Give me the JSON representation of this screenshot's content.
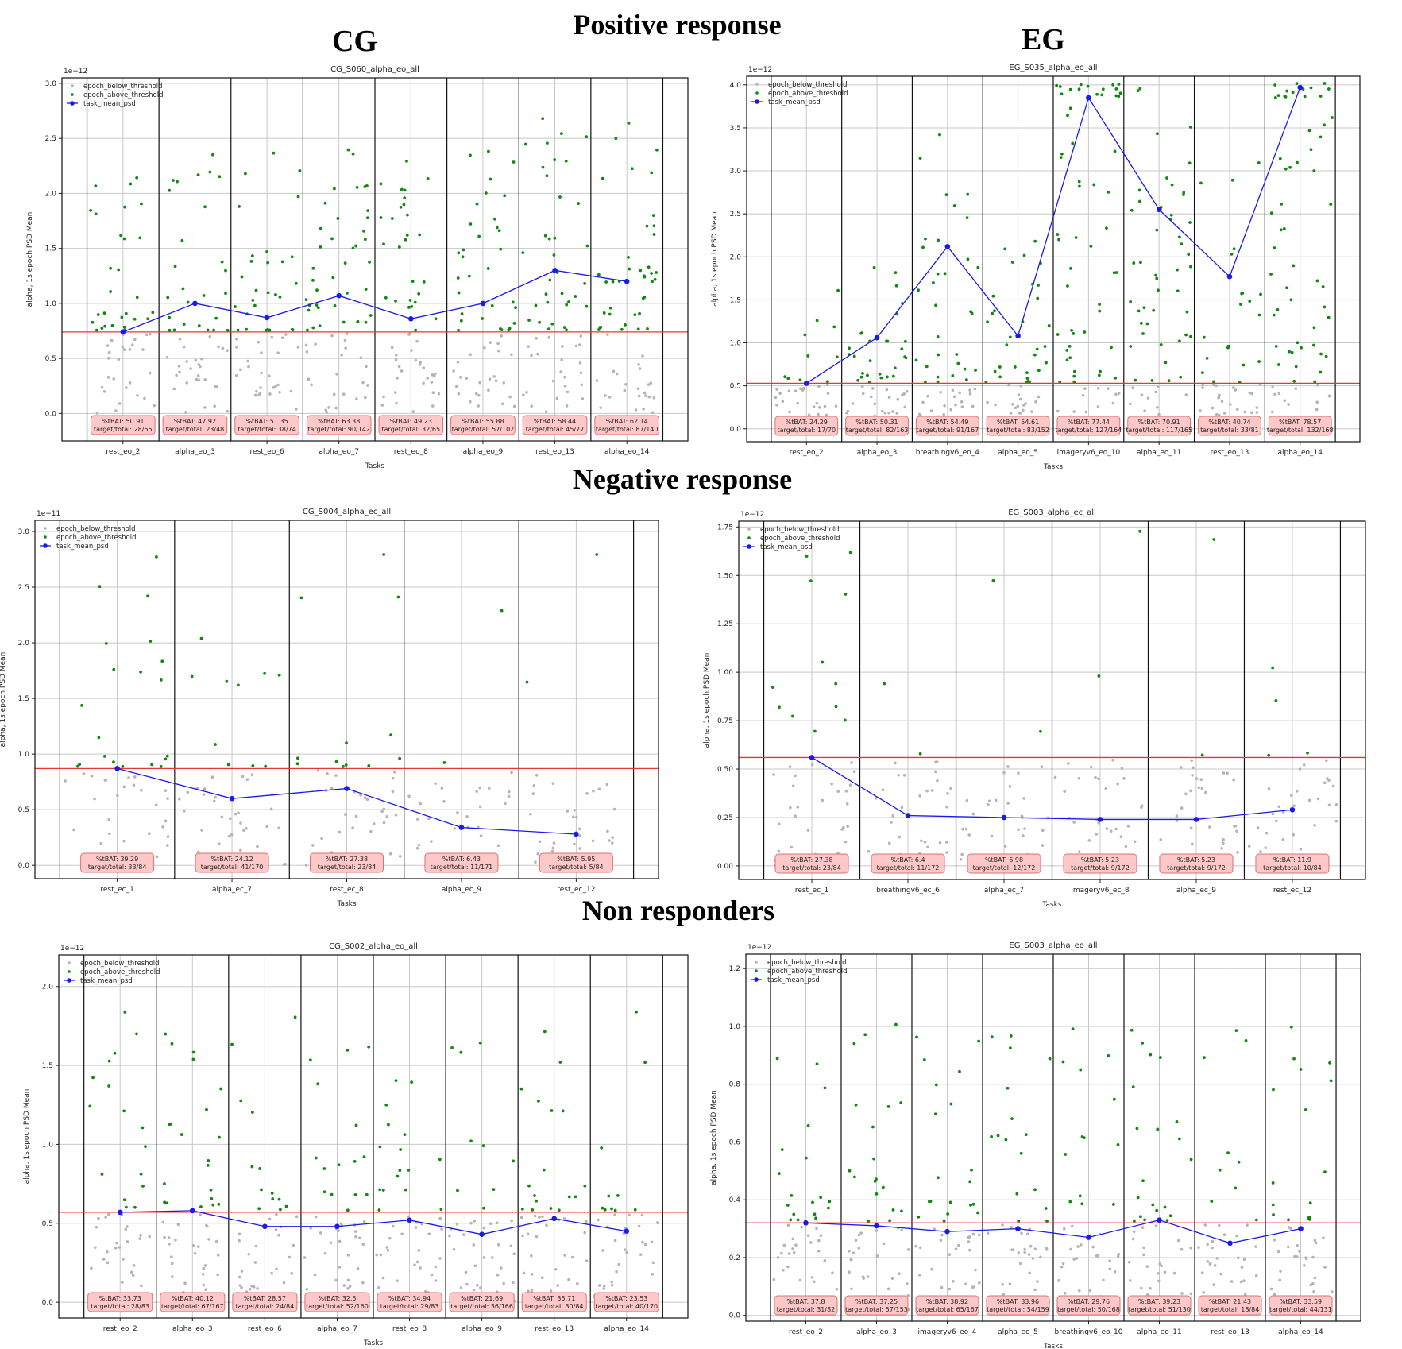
{
  "headings": {
    "positive": "Positive response",
    "negative": "Negative response",
    "non": "Non responders",
    "cg": "CG",
    "eg": "EG"
  },
  "legend_labels": [
    "epoch_below_threshold",
    "epoch_above_threshold",
    "task_mean_psd"
  ],
  "colors": {
    "below": "#b4b4b4",
    "above": "#118811",
    "mean": "#1a1aee",
    "threshold": "#ee3333",
    "box_fill": "#ffc8c8",
    "box_edge": "#e07070"
  },
  "chart_data": [
    {
      "type": "scatter",
      "title": "CG_S060_alpha_eo_all",
      "xlabel": "Tasks",
      "ylabel": "alpha, 1s epoch PSD Mean",
      "exponent": "1e−12",
      "ylim": [
        -0.25,
        3.05
      ],
      "yticks": [
        "0.0",
        "0.5",
        "1.0",
        "1.5",
        "2.0",
        "2.5",
        "3.0"
      ],
      "ytick_values": [
        0,
        0.5,
        1.0,
        1.5,
        2.0,
        2.5,
        3.0
      ],
      "threshold": 0.74,
      "legend": "upper-left",
      "grid": true,
      "tasks": [
        {
          "name": "rest_eo_2",
          "mean": 0.74,
          "pct": "%tBAT: 50.91",
          "ratio": "target/total: 28/55"
        },
        {
          "name": "alpha_eo_3",
          "mean": 1.0,
          "pct": "%tBAT: 47.92",
          "ratio": "target/total: 23/48"
        },
        {
          "name": "rest_eo_6",
          "mean": 0.87,
          "pct": "%tBAT: 51.35",
          "ratio": "target/total: 38/74"
        },
        {
          "name": "alpha_eo_7",
          "mean": 1.07,
          "pct": "%tBAT: 63.38",
          "ratio": "target/total: 90/142"
        },
        {
          "name": "rest_eo_8",
          "mean": 0.86,
          "pct": "%tBAT: 49.23",
          "ratio": "target/total: 32/65"
        },
        {
          "name": "alpha_eo_9",
          "mean": 1.0,
          "pct": "%tBAT: 55.88",
          "ratio": "target/total: 57/102"
        },
        {
          "name": "rest_eo_13",
          "mean": 1.3,
          "pct": "%tBAT: 58.44",
          "ratio": "target/total: 45/77"
        },
        {
          "name": "alpha_eo_14",
          "mean": 1.2,
          "pct": "%tBAT: 62.14",
          "ratio": "target/total: 87/140"
        }
      ]
    },
    {
      "type": "scatter",
      "title": "EG_S035_alpha_eo_all",
      "xlabel": "Tasks",
      "ylabel": "alpha, 1s epoch PSD Mean",
      "exponent": "1e−12",
      "ylim": [
        -0.15,
        4.1
      ],
      "yticks": [
        "0.0",
        "0.5",
        "1.0",
        "1.5",
        "2.0",
        "2.5",
        "3.0",
        "3.5",
        "4.0"
      ],
      "ytick_values": [
        0,
        0.5,
        1.0,
        1.5,
        2.0,
        2.5,
        3.0,
        3.5,
        4.0
      ],
      "threshold": 0.53,
      "legend": "upper-left",
      "grid": true,
      "tasks": [
        {
          "name": "rest_eo_2",
          "mean": 0.53,
          "pct": "%tBAT: 24.29",
          "ratio": "target/total: 17/70"
        },
        {
          "name": "alpha_eo_3",
          "mean": 1.06,
          "pct": "%tBAT: 50.31",
          "ratio": "target/total: 82/163"
        },
        {
          "name": "breathingv6_eo_4",
          "mean": 2.12,
          "pct": "%tBAT: 54.49",
          "ratio": "target/total: 91/167"
        },
        {
          "name": "alpha_eo_5",
          "mean": 1.08,
          "pct": "%tBAT: 54.61",
          "ratio": "target/total: 83/152"
        },
        {
          "name": "imageryv6_eo_10",
          "mean": 3.85,
          "pct": "%tBAT: 77.44",
          "ratio": "target/total: 127/164"
        },
        {
          "name": "alpha_eo_11",
          "mean": 2.55,
          "pct": "%tBAT: 70.91",
          "ratio": "target/total: 117/165"
        },
        {
          "name": "rest_eo_13",
          "mean": 1.77,
          "pct": "%tBAT: 40.74",
          "ratio": "target/total: 33/81"
        },
        {
          "name": "alpha_eo_14",
          "mean": 3.97,
          "pct": "%tBAT: 78.57",
          "ratio": "target/total: 132/168"
        }
      ]
    },
    {
      "type": "scatter",
      "title": "CG_S004_alpha_ec_all",
      "xlabel": "Tasks",
      "ylabel": "alpha, 1s epoch PSD Mean",
      "exponent": "1e−11",
      "ylim": [
        -0.12,
        3.1
      ],
      "yticks": [
        "0.0",
        "0.5",
        "1.0",
        "1.5",
        "2.0",
        "2.5",
        "3.0"
      ],
      "ytick_values": [
        0,
        0.5,
        1.0,
        1.5,
        2.0,
        2.5,
        3.0
      ],
      "threshold": 0.87,
      "legend": "upper-left",
      "grid": true,
      "tasks": [
        {
          "name": "rest_ec_1",
          "mean": 0.87,
          "pct": "%tBAT: 39.29",
          "ratio": "target/total: 33/84"
        },
        {
          "name": "alpha_ec_7",
          "mean": 0.6,
          "pct": "%tBAT: 24.12",
          "ratio": "target/total: 41/170"
        },
        {
          "name": "rest_ec_8",
          "mean": 0.69,
          "pct": "%tBAT: 27.38",
          "ratio": "target/total: 23/84"
        },
        {
          "name": "alpha_ec_9",
          "mean": 0.34,
          "pct": "%tBAT: 6.43",
          "ratio": "target/total: 11/171"
        },
        {
          "name": "rest_ec_12",
          "mean": 0.28,
          "pct": "%tBAT: 5.95",
          "ratio": "target/total: 5/84"
        }
      ]
    },
    {
      "type": "scatter",
      "title": "EG_S003_alpha_ec_all",
      "xlabel": "Tasks",
      "ylabel": "alpha, 1s epoch PSD Mean",
      "exponent": "1e−12",
      "ylim": [
        -0.07,
        1.78
      ],
      "yticks": [
        "0.00",
        "0.25",
        "0.50",
        "0.75",
        "1.00",
        "1.25",
        "1.50",
        "1.75"
      ],
      "ytick_values": [
        0,
        0.25,
        0.5,
        0.75,
        1.0,
        1.25,
        1.5,
        1.75
      ],
      "threshold": 0.56,
      "legend": "upper-left",
      "grid": true,
      "tasks": [
        {
          "name": "rest_ec_1",
          "mean": 0.56,
          "pct": "%tBAT: 27.38",
          "ratio": "target/total: 23/84"
        },
        {
          "name": "breathingv6_ec_6",
          "mean": 0.26,
          "pct": "%tBAT: 6.4",
          "ratio": "target/total: 11/172"
        },
        {
          "name": "alpha_ec_7",
          "mean": 0.25,
          "pct": "%tBAT: 6.98",
          "ratio": "target/total: 12/172"
        },
        {
          "name": "imageryv6_ec_8",
          "mean": 0.24,
          "pct": "%tBAT: 5.23",
          "ratio": "target/total: 9/172"
        },
        {
          "name": "alpha_ec_9",
          "mean": 0.24,
          "pct": "%tBAT: 5.23",
          "ratio": "target/total: 9/172"
        },
        {
          "name": "rest_ec_12",
          "mean": 0.29,
          "pct": "%tBAT: 11.9",
          "ratio": "target/total: 10/84"
        }
      ]
    },
    {
      "type": "scatter",
      "title": "CG_S002_alpha_eo_all",
      "xlabel": "Tasks",
      "ylabel": "alpha, 1s epoch PSD Mean",
      "exponent": "1e−12",
      "ylim": [
        -0.1,
        2.2
      ],
      "yticks": [
        "0.0",
        "0.5",
        "1.0",
        "1.5",
        "2.0"
      ],
      "ytick_values": [
        0,
        0.5,
        1.0,
        1.5,
        2.0
      ],
      "threshold": 0.57,
      "legend": "upper-left",
      "grid": true,
      "tasks": [
        {
          "name": "rest_eo_2",
          "mean": 0.57,
          "pct": "%tBAT: 33.73",
          "ratio": "target/total: 28/83"
        },
        {
          "name": "alpha_eo_3",
          "mean": 0.58,
          "pct": "%tBAT: 40.12",
          "ratio": "target/total: 67/167"
        },
        {
          "name": "rest_eo_6",
          "mean": 0.48,
          "pct": "%tBAT: 28.57",
          "ratio": "target/total: 24/84"
        },
        {
          "name": "alpha_eo_7",
          "mean": 0.48,
          "pct": "%tBAT: 32.5",
          "ratio": "target/total: 52/160"
        },
        {
          "name": "rest_eo_8",
          "mean": 0.52,
          "pct": "%tBAT: 34.94",
          "ratio": "target/total: 29/83"
        },
        {
          "name": "alpha_eo_9",
          "mean": 0.43,
          "pct": "%tBAT: 21.69",
          "ratio": "target/total: 36/166"
        },
        {
          "name": "rest_eo_13",
          "mean": 0.53,
          "pct": "%tBAT: 35.71",
          "ratio": "target/total: 30/84"
        },
        {
          "name": "alpha_eo_14",
          "mean": 0.45,
          "pct": "%tBAT: 23.53",
          "ratio": "target/total: 40/170"
        }
      ]
    },
    {
      "type": "scatter",
      "title": "EG_S003_alpha_eo_all",
      "xlabel": "Tasks",
      "ylabel": "alpha, 1s epoch PSD Mean",
      "exponent": "1e−12",
      "ylim": [
        -0.02,
        1.25
      ],
      "yticks": [
        "0.0",
        "0.2",
        "0.4",
        "0.6",
        "0.8",
        "1.0",
        "1.2"
      ],
      "ytick_values": [
        0,
        0.2,
        0.4,
        0.6,
        0.8,
        1.0,
        1.2
      ],
      "threshold": 0.32,
      "legend": "upper-left",
      "grid": true,
      "tasks": [
        {
          "name": "rest_eo_2",
          "mean": 0.32,
          "pct": "%tBAT: 37.8",
          "ratio": "target/total: 31/82"
        },
        {
          "name": "alpha_eo_3",
          "mean": 0.31,
          "pct": "%tBAT: 37.25",
          "ratio": "target/total: 57/153"
        },
        {
          "name": "imageryv6_eo_4",
          "mean": 0.29,
          "pct": "%tBAT: 38.92",
          "ratio": "target/total: 65/167"
        },
        {
          "name": "alpha_eo_5",
          "mean": 0.3,
          "pct": "%tBAT: 33.96",
          "ratio": "target/total: 54/159"
        },
        {
          "name": "breathingv6_eo_10",
          "mean": 0.27,
          "pct": "%tBAT: 29.76",
          "ratio": "target/total: 50/168"
        },
        {
          "name": "alpha_eo_11",
          "mean": 0.33,
          "pct": "%tBAT: 39.23",
          "ratio": "target/total: 51/130"
        },
        {
          "name": "rest_eo_13",
          "mean": 0.25,
          "pct": "%tBAT: 21.43",
          "ratio": "target/total: 18/84"
        },
        {
          "name": "alpha_eo_14",
          "mean": 0.3,
          "pct": "%tBAT: 33.59",
          "ratio": "target/total: 44/131"
        }
      ]
    }
  ]
}
